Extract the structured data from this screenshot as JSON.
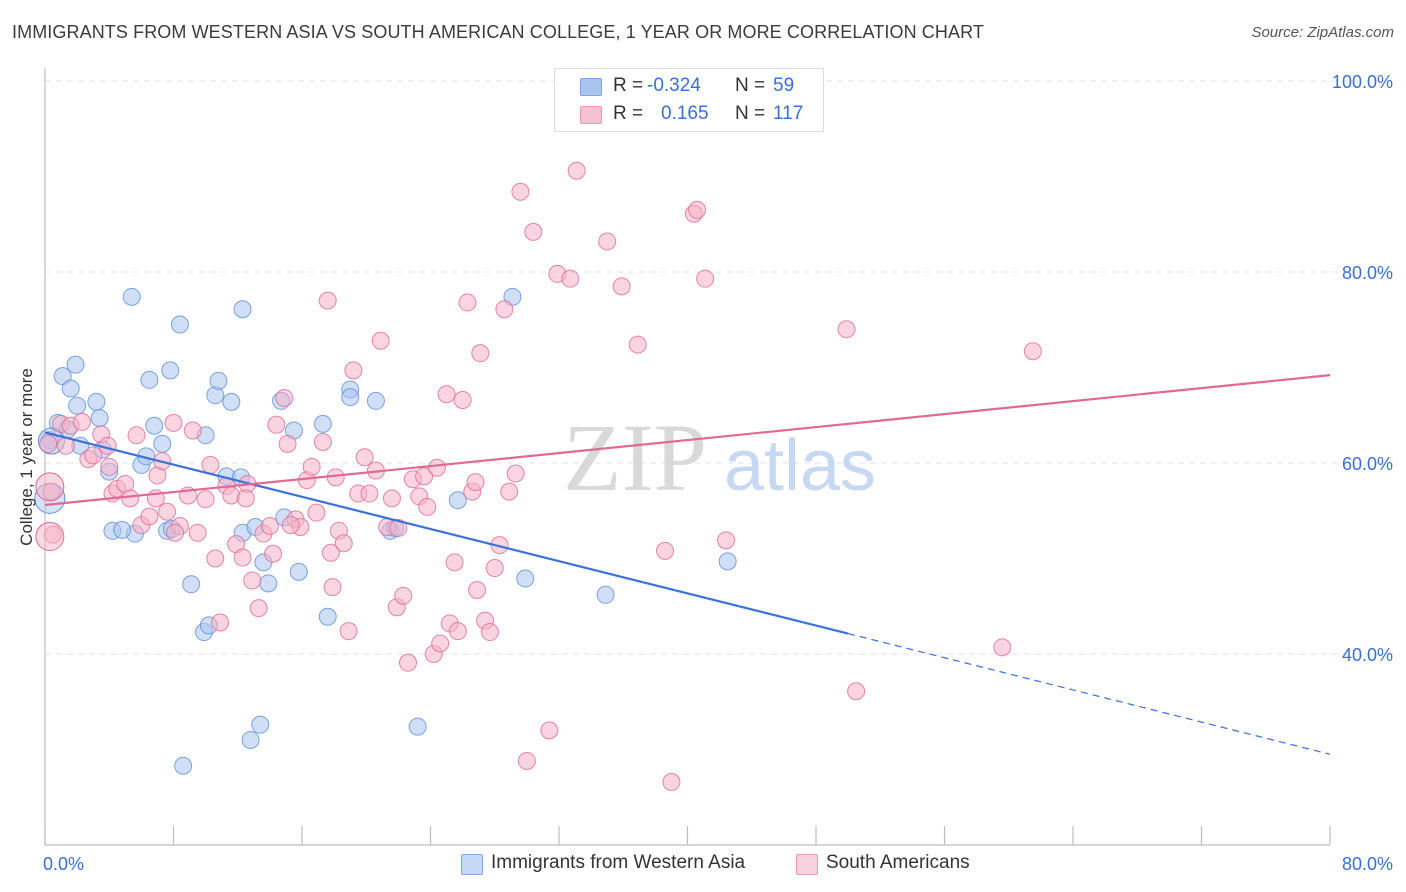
{
  "title": "IMMIGRANTS FROM WESTERN ASIA VS SOUTH AMERICAN COLLEGE, 1 YEAR OR MORE CORRELATION CHART",
  "source": "Source: ZipAtlas.com",
  "watermark": {
    "zip": "ZIP",
    "atlas": "atlas"
  },
  "stats": [
    {
      "r_label": "R =",
      "r_value": "-0.324",
      "n_label": "N =",
      "n_value": "59",
      "color": "#a9c4ee"
    },
    {
      "r_label": "R =",
      "r_value": "0.165",
      "n_label": "N =",
      "n_value": "117",
      "color": "#f5b3c8"
    }
  ],
  "legend": [
    {
      "label": "Immigrants from Western Asia",
      "color": "#a9c4ee"
    },
    {
      "label": "South Americans",
      "color": "#f5b3c8"
    }
  ],
  "chart_data": {
    "type": "scatter",
    "title": "IMMIGRANTS FROM WESTERN ASIA VS SOUTH AMERICAN COLLEGE, 1 YEAR OR MORE CORRELATION CHART",
    "xlabel": "",
    "ylabel": "College, 1 year or more",
    "xlim": [
      0,
      80
    ],
    "ylim": [
      20,
      100
    ],
    "x_tick_labels": [
      "0.0%",
      "80.0%"
    ],
    "y_ticks": [
      40,
      60,
      80,
      100
    ],
    "y_tick_labels": [
      "40.0%",
      "60.0%",
      "80.0%",
      "100.0%"
    ],
    "grid": true,
    "series": [
      {
        "name": "Immigrants from Western Asia",
        "color": "#5b8fe0",
        "fill": "#a9c4ee",
        "points": [
          [
            0.3,
            62.4
          ],
          [
            0.8,
            64.2
          ],
          [
            1.1,
            69.1
          ],
          [
            1.4,
            63.5
          ],
          [
            1.6,
            67.8
          ],
          [
            1.9,
            70.3
          ],
          [
            2.0,
            66.0
          ],
          [
            2.2,
            61.8
          ],
          [
            3.2,
            66.4
          ],
          [
            3.4,
            64.7
          ],
          [
            3.6,
            61.4
          ],
          [
            4.0,
            59.1
          ],
          [
            4.2,
            52.9
          ],
          [
            5.4,
            77.4
          ],
          [
            5.6,
            52.6
          ],
          [
            6.0,
            59.8
          ],
          [
            6.3,
            60.7
          ],
          [
            6.5,
            68.7
          ],
          [
            6.8,
            63.9
          ],
          [
            7.3,
            62.0
          ],
          [
            7.6,
            52.9
          ],
          [
            7.9,
            53.1
          ],
          [
            7.8,
            69.7
          ],
          [
            8.4,
            74.5
          ],
          [
            9.1,
            47.3
          ],
          [
            9.9,
            42.3
          ],
          [
            10.2,
            43.0
          ],
          [
            10.6,
            67.1
          ],
          [
            10.8,
            68.6
          ],
          [
            11.3,
            58.6
          ],
          [
            11.6,
            66.4
          ],
          [
            12.2,
            58.5
          ],
          [
            12.3,
            76.1
          ],
          [
            12.3,
            52.7
          ],
          [
            12.8,
            31.0
          ],
          [
            13.1,
            53.3
          ],
          [
            13.4,
            32.6
          ],
          [
            13.6,
            49.6
          ],
          [
            13.9,
            47.4
          ],
          [
            14.9,
            54.3
          ],
          [
            14.7,
            66.5
          ],
          [
            15.5,
            63.4
          ],
          [
            15.8,
            48.6
          ],
          [
            17.3,
            64.1
          ],
          [
            17.6,
            43.9
          ],
          [
            19.0,
            67.7
          ],
          [
            19.0,
            66.9
          ],
          [
            21.5,
            52.9
          ],
          [
            21.8,
            53.2
          ],
          [
            23.2,
            32.4
          ],
          [
            25.7,
            56.1
          ],
          [
            29.1,
            77.4
          ],
          [
            29.9,
            47.9
          ],
          [
            34.9,
            46.2
          ],
          [
            42.5,
            49.7
          ],
          [
            8.6,
            28.3
          ],
          [
            4.8,
            53.0
          ],
          [
            10.0,
            62.9
          ],
          [
            20.6,
            66.5
          ]
        ]
      },
      {
        "name": "South Americans",
        "color": "#e06a93",
        "fill": "#f5b3c8",
        "points": [
          [
            0.2,
            62.0
          ],
          [
            0.4,
            57.0
          ],
          [
            0.5,
            52.5
          ],
          [
            1.0,
            64.1
          ],
          [
            1.3,
            61.8
          ],
          [
            1.6,
            63.9
          ],
          [
            2.3,
            64.3
          ],
          [
            2.7,
            60.4
          ],
          [
            3.5,
            63.0
          ],
          [
            3.9,
            61.8
          ],
          [
            4.0,
            59.6
          ],
          [
            4.2,
            56.8
          ],
          [
            4.5,
            57.3
          ],
          [
            5.0,
            57.8
          ],
          [
            5.3,
            56.3
          ],
          [
            6.0,
            53.5
          ],
          [
            6.5,
            54.4
          ],
          [
            6.9,
            56.3
          ],
          [
            7.0,
            58.7
          ],
          [
            7.3,
            60.2
          ],
          [
            7.6,
            54.9
          ],
          [
            8.0,
            64.2
          ],
          [
            8.4,
            53.4
          ],
          [
            8.9,
            56.6
          ],
          [
            9.2,
            63.4
          ],
          [
            9.5,
            52.7
          ],
          [
            10.0,
            56.2
          ],
          [
            10.3,
            59.8
          ],
          [
            10.6,
            50.0
          ],
          [
            10.9,
            43.3
          ],
          [
            11.3,
            57.6
          ],
          [
            11.6,
            56.6
          ],
          [
            11.9,
            51.5
          ],
          [
            12.3,
            50.1
          ],
          [
            12.6,
            57.8
          ],
          [
            12.9,
            47.7
          ],
          [
            13.3,
            44.8
          ],
          [
            13.6,
            52.6
          ],
          [
            14.0,
            53.4
          ],
          [
            14.4,
            64.0
          ],
          [
            14.9,
            66.8
          ],
          [
            15.1,
            62.0
          ],
          [
            15.6,
            54.1
          ],
          [
            15.9,
            53.3
          ],
          [
            16.3,
            58.2
          ],
          [
            16.6,
            59.6
          ],
          [
            16.9,
            54.8
          ],
          [
            17.3,
            62.2
          ],
          [
            17.6,
            77.0
          ],
          [
            17.8,
            50.6
          ],
          [
            17.9,
            47.0
          ],
          [
            18.3,
            52.9
          ],
          [
            18.6,
            51.6
          ],
          [
            18.9,
            42.4
          ],
          [
            19.2,
            69.7
          ],
          [
            19.5,
            56.8
          ],
          [
            19.9,
            60.6
          ],
          [
            20.2,
            56.8
          ],
          [
            20.6,
            59.2
          ],
          [
            20.9,
            72.8
          ],
          [
            21.3,
            53.3
          ],
          [
            21.6,
            56.3
          ],
          [
            21.9,
            44.9
          ],
          [
            22.3,
            46.1
          ],
          [
            22.6,
            39.1
          ],
          [
            22.9,
            58.3
          ],
          [
            23.3,
            56.5
          ],
          [
            23.6,
            58.6
          ],
          [
            23.8,
            55.4
          ],
          [
            24.2,
            40.0
          ],
          [
            24.4,
            59.5
          ],
          [
            24.6,
            41.1
          ],
          [
            25.0,
            67.2
          ],
          [
            25.2,
            43.2
          ],
          [
            25.5,
            49.6
          ],
          [
            25.7,
            42.4
          ],
          [
            26.0,
            66.6
          ],
          [
            26.3,
            76.8
          ],
          [
            26.6,
            57.0
          ],
          [
            26.9,
            46.7
          ],
          [
            27.1,
            71.5
          ],
          [
            27.4,
            43.5
          ],
          [
            27.7,
            42.3
          ],
          [
            28.0,
            49.0
          ],
          [
            28.3,
            51.4
          ],
          [
            28.6,
            76.1
          ],
          [
            28.9,
            57.0
          ],
          [
            29.3,
            58.9
          ],
          [
            29.6,
            88.4
          ],
          [
            30.0,
            28.8
          ],
          [
            30.4,
            84.2
          ],
          [
            31.4,
            32.0
          ],
          [
            31.9,
            79.8
          ],
          [
            32.7,
            79.3
          ],
          [
            33.1,
            90.6
          ],
          [
            35.0,
            83.2
          ],
          [
            35.9,
            78.5
          ],
          [
            36.9,
            72.4
          ],
          [
            38.6,
            50.8
          ],
          [
            39.0,
            26.6
          ],
          [
            40.4,
            86.1
          ],
          [
            40.6,
            86.5
          ],
          [
            41.1,
            79.3
          ],
          [
            42.4,
            51.9
          ],
          [
            49.9,
            74.0
          ],
          [
            50.5,
            36.1
          ],
          [
            59.6,
            40.7
          ],
          [
            61.5,
            71.7
          ],
          [
            3.0,
            60.8
          ],
          [
            15.3,
            53.5
          ],
          [
            8.1,
            52.7
          ],
          [
            26.8,
            58.0
          ],
          [
            12.5,
            56.3
          ],
          [
            5.7,
            62.9
          ],
          [
            18.1,
            58.5
          ],
          [
            22.0,
            53.2
          ],
          [
            14.2,
            50.5
          ]
        ]
      }
    ],
    "trendlines": [
      {
        "series": "Immigrants from Western Asia",
        "x0": 0,
        "y0": 63.2,
        "x_solid_end": 50.0,
        "x1": 80,
        "y1": 29.5,
        "dashed_after_solid": true
      },
      {
        "series": "South Americans",
        "x0": 0,
        "y0": 55.6,
        "x1": 80,
        "y1": 69.2
      }
    ]
  }
}
